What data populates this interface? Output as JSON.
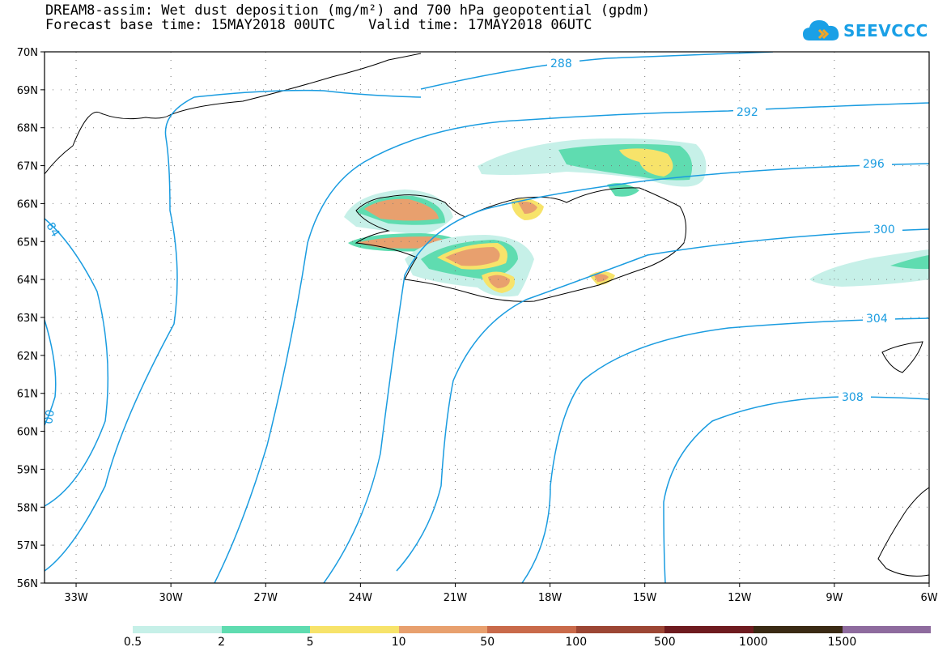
{
  "title": {
    "line1": "DREAM8-assim: Wet dust deposition (mg/m²) and 700 hPa geopotential (gpdm)",
    "line2": "Forecast base time: 15MAY2018 00UTC    Valid time: 17MAY2018 06UTC"
  },
  "logo": {
    "text": "SEEVCCC",
    "icon": "cloud-icon"
  },
  "map": {
    "lat_ticks": [
      "70N",
      "69N",
      "68N",
      "67N",
      "66N",
      "65N",
      "64N",
      "63N",
      "62N",
      "61N",
      "60N",
      "59N",
      "58N",
      "57N",
      "56N"
    ],
    "lon_ticks": [
      "33W",
      "30W",
      "27W",
      "24W",
      "21W",
      "18W",
      "15W",
      "12W",
      "9W",
      "6W"
    ],
    "lat_range": [
      56,
      70
    ],
    "lon_range": [
      -34,
      -6
    ],
    "contour_color": "#1a9ce0",
    "contour_labels": [
      "288",
      "292",
      "296",
      "300",
      "304",
      "308",
      "84",
      "00"
    ]
  },
  "legend": {
    "labels": [
      "0.5",
      "2",
      "5",
      "10",
      "50",
      "100",
      "500",
      "1000",
      "1500"
    ],
    "colors": [
      "#c6f0e8",
      "#5fdcb0",
      "#f7e36a",
      "#e8a06e",
      "#c96a4a",
      "#9c4634",
      "#6e1b1f",
      "#3a2a14",
      "#8e6b9e",
      "#a8a8a8"
    ]
  }
}
